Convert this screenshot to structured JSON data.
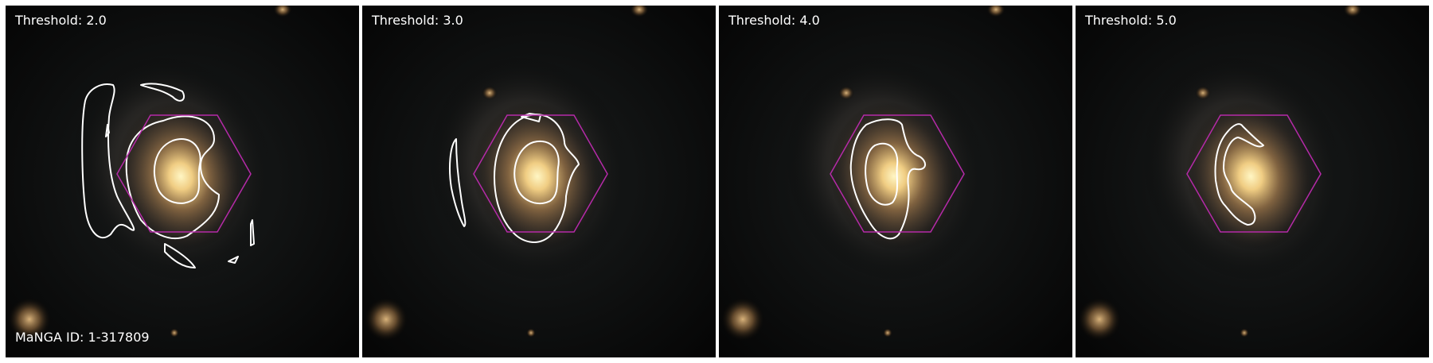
{
  "panels": [
    {
      "threshold_label": "Threshold: 2.0"
    },
    {
      "threshold_label": "Threshold: 3.0"
    },
    {
      "threshold_label": "Threshold: 4.0"
    },
    {
      "threshold_label": "Threshold: 5.0"
    }
  ],
  "galaxy_id_label": "MaNGA ID: 1-317809",
  "colors": {
    "background": "#030303",
    "galaxy_core": "#fff2b0",
    "galaxy_halo": "#c9a56a",
    "contour": "#ffffff",
    "hexagon": "#b52aa8"
  }
}
